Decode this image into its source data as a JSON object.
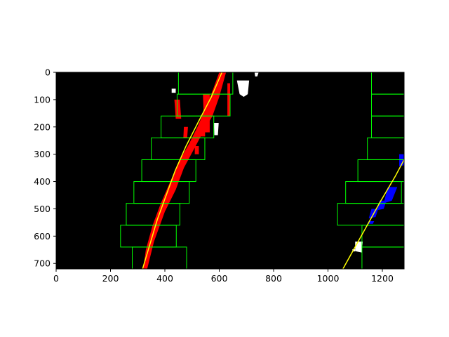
{
  "chart_data": {
    "type": "scatter",
    "title": "",
    "xlabel": "",
    "ylabel": "",
    "xlim": [
      0,
      1280
    ],
    "ylim": [
      720,
      0
    ],
    "x_ticks": [
      0,
      200,
      400,
      600,
      800,
      1000,
      1200
    ],
    "y_ticks": [
      0,
      100,
      200,
      300,
      400,
      500,
      600,
      700
    ],
    "grid": false,
    "background": "#000000",
    "series": [
      {
        "kind": "fitted-line",
        "color": "#ffff00",
        "points": [
          [
            318,
            720
          ],
          [
            372,
            540
          ],
          [
            438,
            360
          ],
          [
            478,
            270
          ],
          [
            524,
            180
          ],
          [
            571,
            90
          ],
          [
            610,
            0
          ]
        ]
      },
      {
        "kind": "fitted-line",
        "color": "#ffff00",
        "points": [
          [
            1055,
            720
          ],
          [
            1122,
            600
          ],
          [
            1189,
            480
          ],
          [
            1248,
            380
          ],
          [
            1280,
            320
          ]
        ]
      },
      {
        "kind": "search-windows",
        "color": "#00ff00",
        "rects": [
          [
            280,
            640,
            480,
            720
          ],
          [
            237,
            560,
            442,
            640
          ],
          [
            258,
            480,
            455,
            560
          ],
          [
            286,
            400,
            490,
            480
          ],
          [
            315,
            320,
            514,
            400
          ],
          [
            350,
            240,
            547,
            320
          ],
          [
            386,
            160,
            580,
            240
          ],
          [
            445,
            80,
            640,
            160
          ],
          [
            450,
            0,
            650,
            80
          ],
          [
            1125,
            640,
            1280,
            720
          ],
          [
            1125,
            560,
            1280,
            640
          ],
          [
            1035,
            480,
            1280,
            560
          ],
          [
            1065,
            400,
            1270,
            480
          ],
          [
            1110,
            320,
            1280,
            400
          ],
          [
            1145,
            240,
            1280,
            320
          ],
          [
            1160,
            160,
            1280,
            240
          ],
          [
            1160,
            80,
            1280,
            160
          ],
          [
            1160,
            0,
            1280,
            80
          ]
        ]
      },
      {
        "kind": "left-lane-pixels",
        "color": "#ff0000",
        "polygons": [
          [
            [
              320,
              720
            ],
            [
              335,
              720
            ],
            [
              360,
              620
            ],
            [
              400,
              510
            ],
            [
              440,
              430
            ],
            [
              470,
              350
            ],
            [
              505,
              285
            ],
            [
              540,
              220
            ],
            [
              575,
              160
            ],
            [
              600,
              90
            ],
            [
              625,
              0
            ],
            [
              600,
              0
            ],
            [
              578,
              60
            ],
            [
              555,
              120
            ],
            [
              520,
              200
            ],
            [
              490,
              260
            ],
            [
              450,
              330
            ],
            [
              420,
              400
            ],
            [
              385,
              480
            ],
            [
              355,
              560
            ],
            [
              330,
              650
            ]
          ],
          [
            [
              540,
              80
            ],
            [
              565,
              80
            ],
            [
              565,
              220
            ],
            [
              545,
              220
            ]
          ],
          [
            [
              630,
              40
            ],
            [
              640,
              40
            ],
            [
              640,
              160
            ],
            [
              630,
              160
            ]
          ],
          [
            [
              435,
              100
            ],
            [
              455,
              100
            ],
            [
              460,
              170
            ],
            [
              440,
              170
            ]
          ],
          [
            [
              470,
              200
            ],
            [
              485,
              200
            ],
            [
              482,
              240
            ],
            [
              468,
              240
            ]
          ],
          [
            [
              510,
              270
            ],
            [
              525,
              270
            ],
            [
              525,
              300
            ],
            [
              510,
              300
            ]
          ],
          [
            [
              530,
              200
            ],
            [
              548,
              200
            ],
            [
              548,
              235
            ],
            [
              530,
              235
            ]
          ]
        ]
      },
      {
        "kind": "right-lane-pixels",
        "color": "#0000ff",
        "polygons": [
          [
            [
              1220,
              420
            ],
            [
              1255,
              420
            ],
            [
              1235,
              470
            ],
            [
              1205,
              480
            ]
          ],
          [
            [
              1190,
              470
            ],
            [
              1215,
              470
            ],
            [
              1205,
              500
            ],
            [
              1180,
              505
            ]
          ],
          [
            [
              1160,
              500
            ],
            [
              1185,
              500
            ],
            [
              1175,
              530
            ],
            [
              1150,
              535
            ]
          ],
          [
            [
              1262,
              300
            ],
            [
              1280,
              300
            ],
            [
              1280,
              340
            ],
            [
              1262,
              345
            ]
          ],
          [
            [
              1150,
              545
            ],
            [
              1170,
              545
            ],
            [
              1165,
              555
            ],
            [
              1145,
              555
            ]
          ]
        ]
      },
      {
        "kind": "unused-pixels",
        "color": "#ffffff",
        "polygons": [
          [
            [
              665,
              30
            ],
            [
              710,
              30
            ],
            [
              705,
              80
            ],
            [
              690,
              90
            ],
            [
              675,
              80
            ]
          ],
          [
            [
              730,
              0
            ],
            [
              745,
              0
            ],
            [
              740,
              15
            ],
            [
              732,
              15
            ]
          ],
          [
            [
              580,
              185
            ],
            [
              598,
              185
            ],
            [
              595,
              230
            ],
            [
              582,
              230
            ]
          ],
          [
            [
              1100,
              620
            ],
            [
              1128,
              620
            ],
            [
              1124,
              660
            ],
            [
              1100,
              655
            ]
          ],
          [
            [
              1090,
              648
            ],
            [
              1100,
              648
            ],
            [
              1100,
              656
            ],
            [
              1090,
              656
            ]
          ],
          [
            [
              425,
              60
            ],
            [
              440,
              60
            ],
            [
              440,
              75
            ],
            [
              425,
              75
            ]
          ]
        ]
      }
    ]
  }
}
